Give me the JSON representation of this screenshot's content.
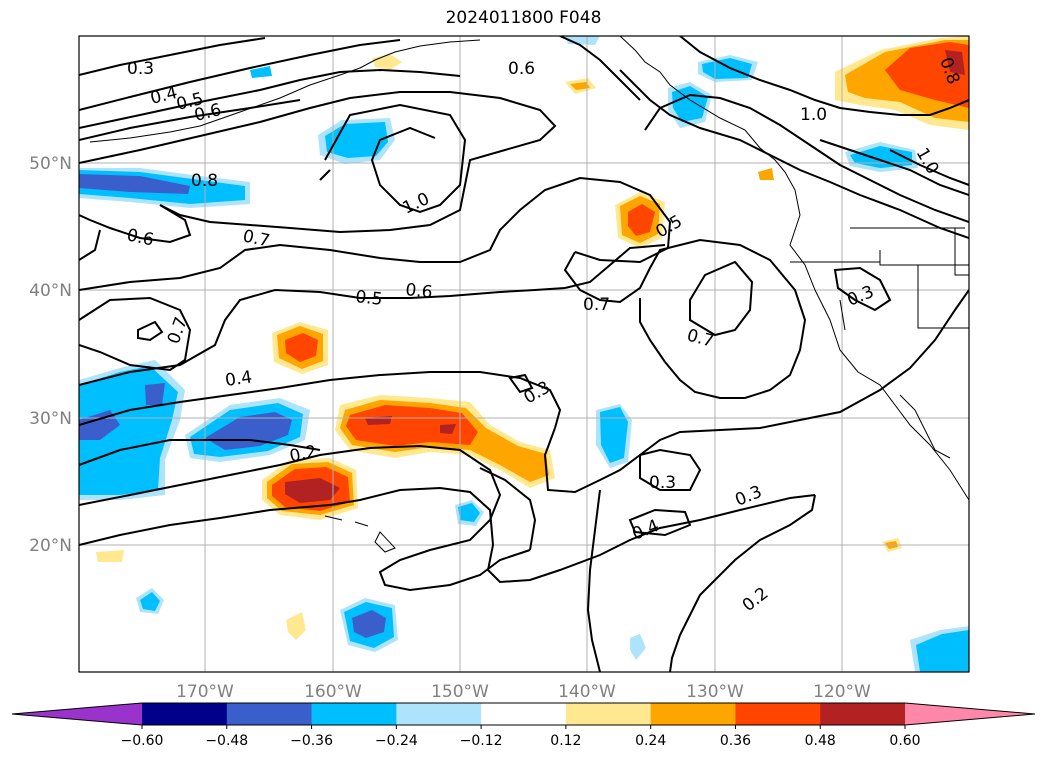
{
  "title": "2024011800 F048",
  "latitude_labels": [
    "50°N",
    "40°N",
    "30°N",
    "20°N"
  ],
  "longitude_labels": [
    "170°W",
    "160°W",
    "150°W",
    "140°W",
    "130°W",
    "120°W"
  ],
  "contour_labels": [
    "0.3",
    "0.4",
    "0.5",
    "0.6",
    "0.6",
    "1.0",
    "0.8",
    "1.0",
    "0.6",
    "0.7",
    "0.5",
    "0.6",
    "0.7",
    "0.5",
    "0.7",
    "0.7",
    "0.4",
    "0.3",
    "0.2",
    "0.3",
    "0.3",
    "0.4",
    "0.2",
    "0.3",
    "1.0",
    "0.8"
  ],
  "colorbar": {
    "tick_labels": [
      "−0.60",
      "−0.48",
      "−0.36",
      "−0.24",
      "−0.12",
      "0.12",
      "0.24",
      "0.36",
      "0.48",
      "0.60"
    ],
    "colors": [
      "#9933cc",
      "#00008b",
      "#3a5fcd",
      "#00bfff",
      "#aee4fb",
      "#ffffff",
      "#ffe890",
      "#ffa500",
      "#ff4500",
      "#b22222",
      "#ff88aa"
    ]
  },
  "colors": {
    "strong_negative": "#3a5fcd",
    "negative": "#00bfff",
    "weak_negative": "#aee4fb",
    "weak_positive": "#ffe890",
    "positive": "#ffa500",
    "strong_positive": "#ff4500",
    "very_strong_positive": "#b22222"
  }
}
